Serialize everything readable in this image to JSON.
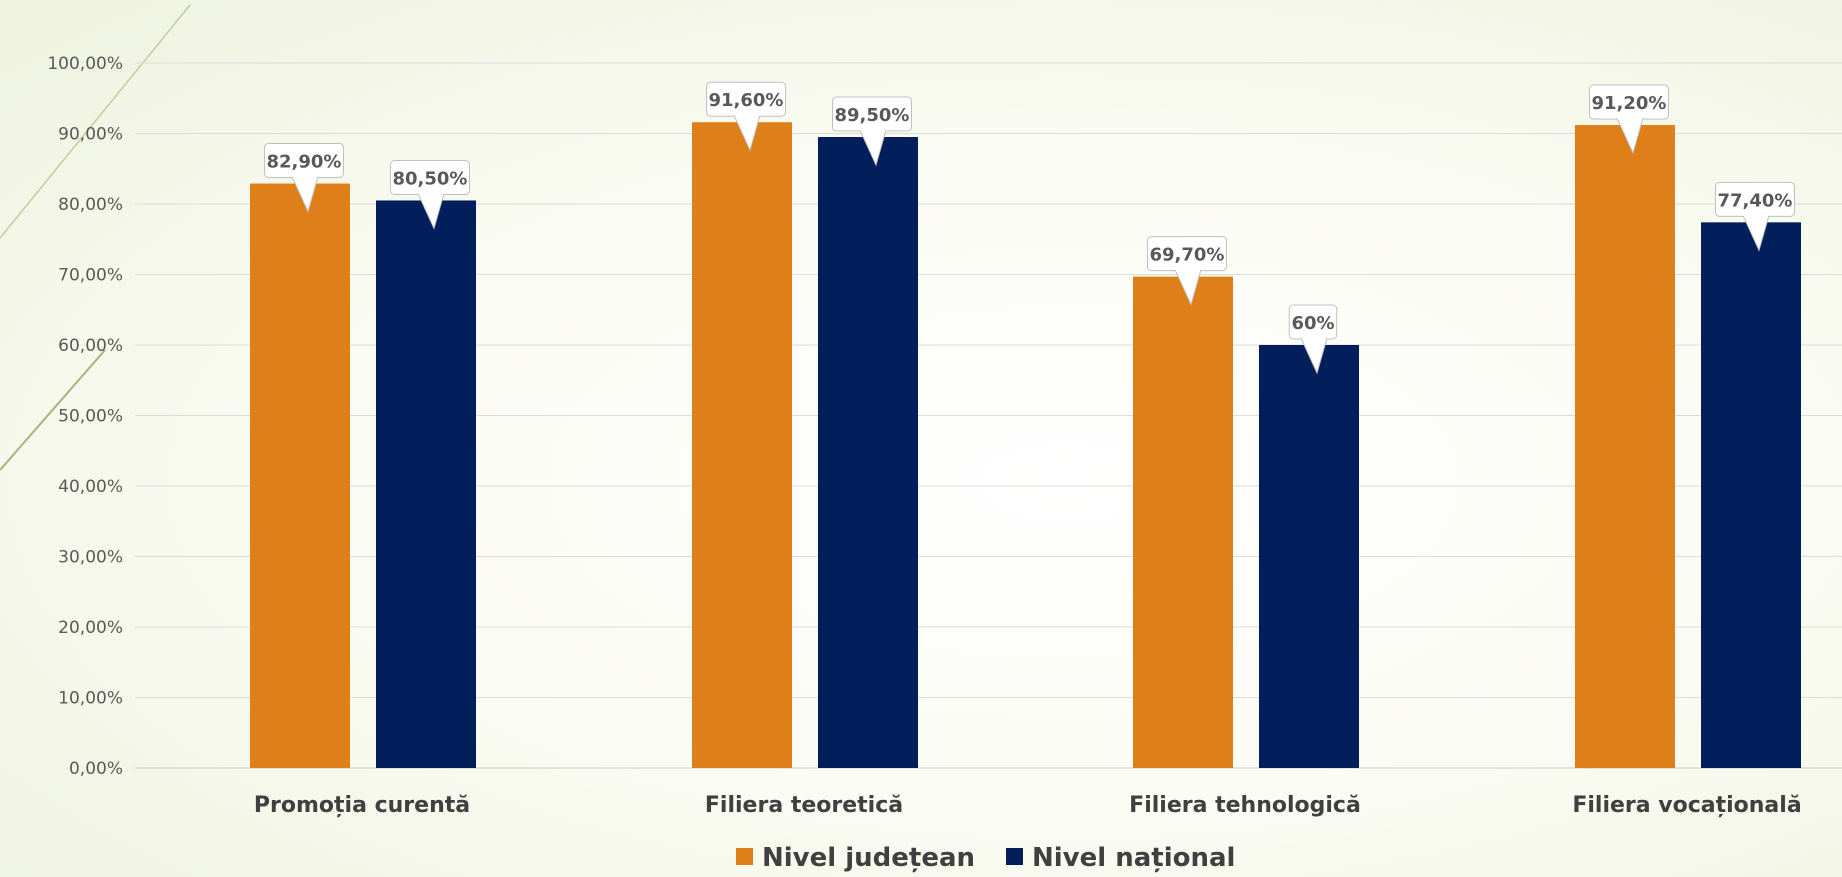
{
  "chart_data": {
    "type": "bar",
    "categories": [
      "Promoția curentă",
      "Filiera teoretică",
      "Filiera tehnologică",
      "Filiera vocațională"
    ],
    "series": [
      {
        "name": "Nivel județean",
        "color": "#DF7F1A",
        "values": [
          82.9,
          91.6,
          69.7,
          91.2
        ],
        "labels": [
          "82,90%",
          "91,60%",
          "69,70%",
          "91,20%"
        ]
      },
      {
        "name": "Nivel național",
        "color": "#021F5C",
        "values": [
          80.5,
          89.5,
          60,
          77.4
        ],
        "labels": [
          "80,50%",
          "89,50%",
          "60%",
          "77,40%"
        ]
      }
    ],
    "yticks": [
      "0,00%",
      "10,00%",
      "20,00%",
      "30,00%",
      "40,00%",
      "50,00%",
      "60,00%",
      "70,00%",
      "80,00%",
      "90,00%",
      "100,00%"
    ],
    "ylim": [
      0,
      100
    ],
    "grid": true,
    "legend_position": "bottom",
    "title": "",
    "xlabel": "",
    "ylabel": ""
  }
}
